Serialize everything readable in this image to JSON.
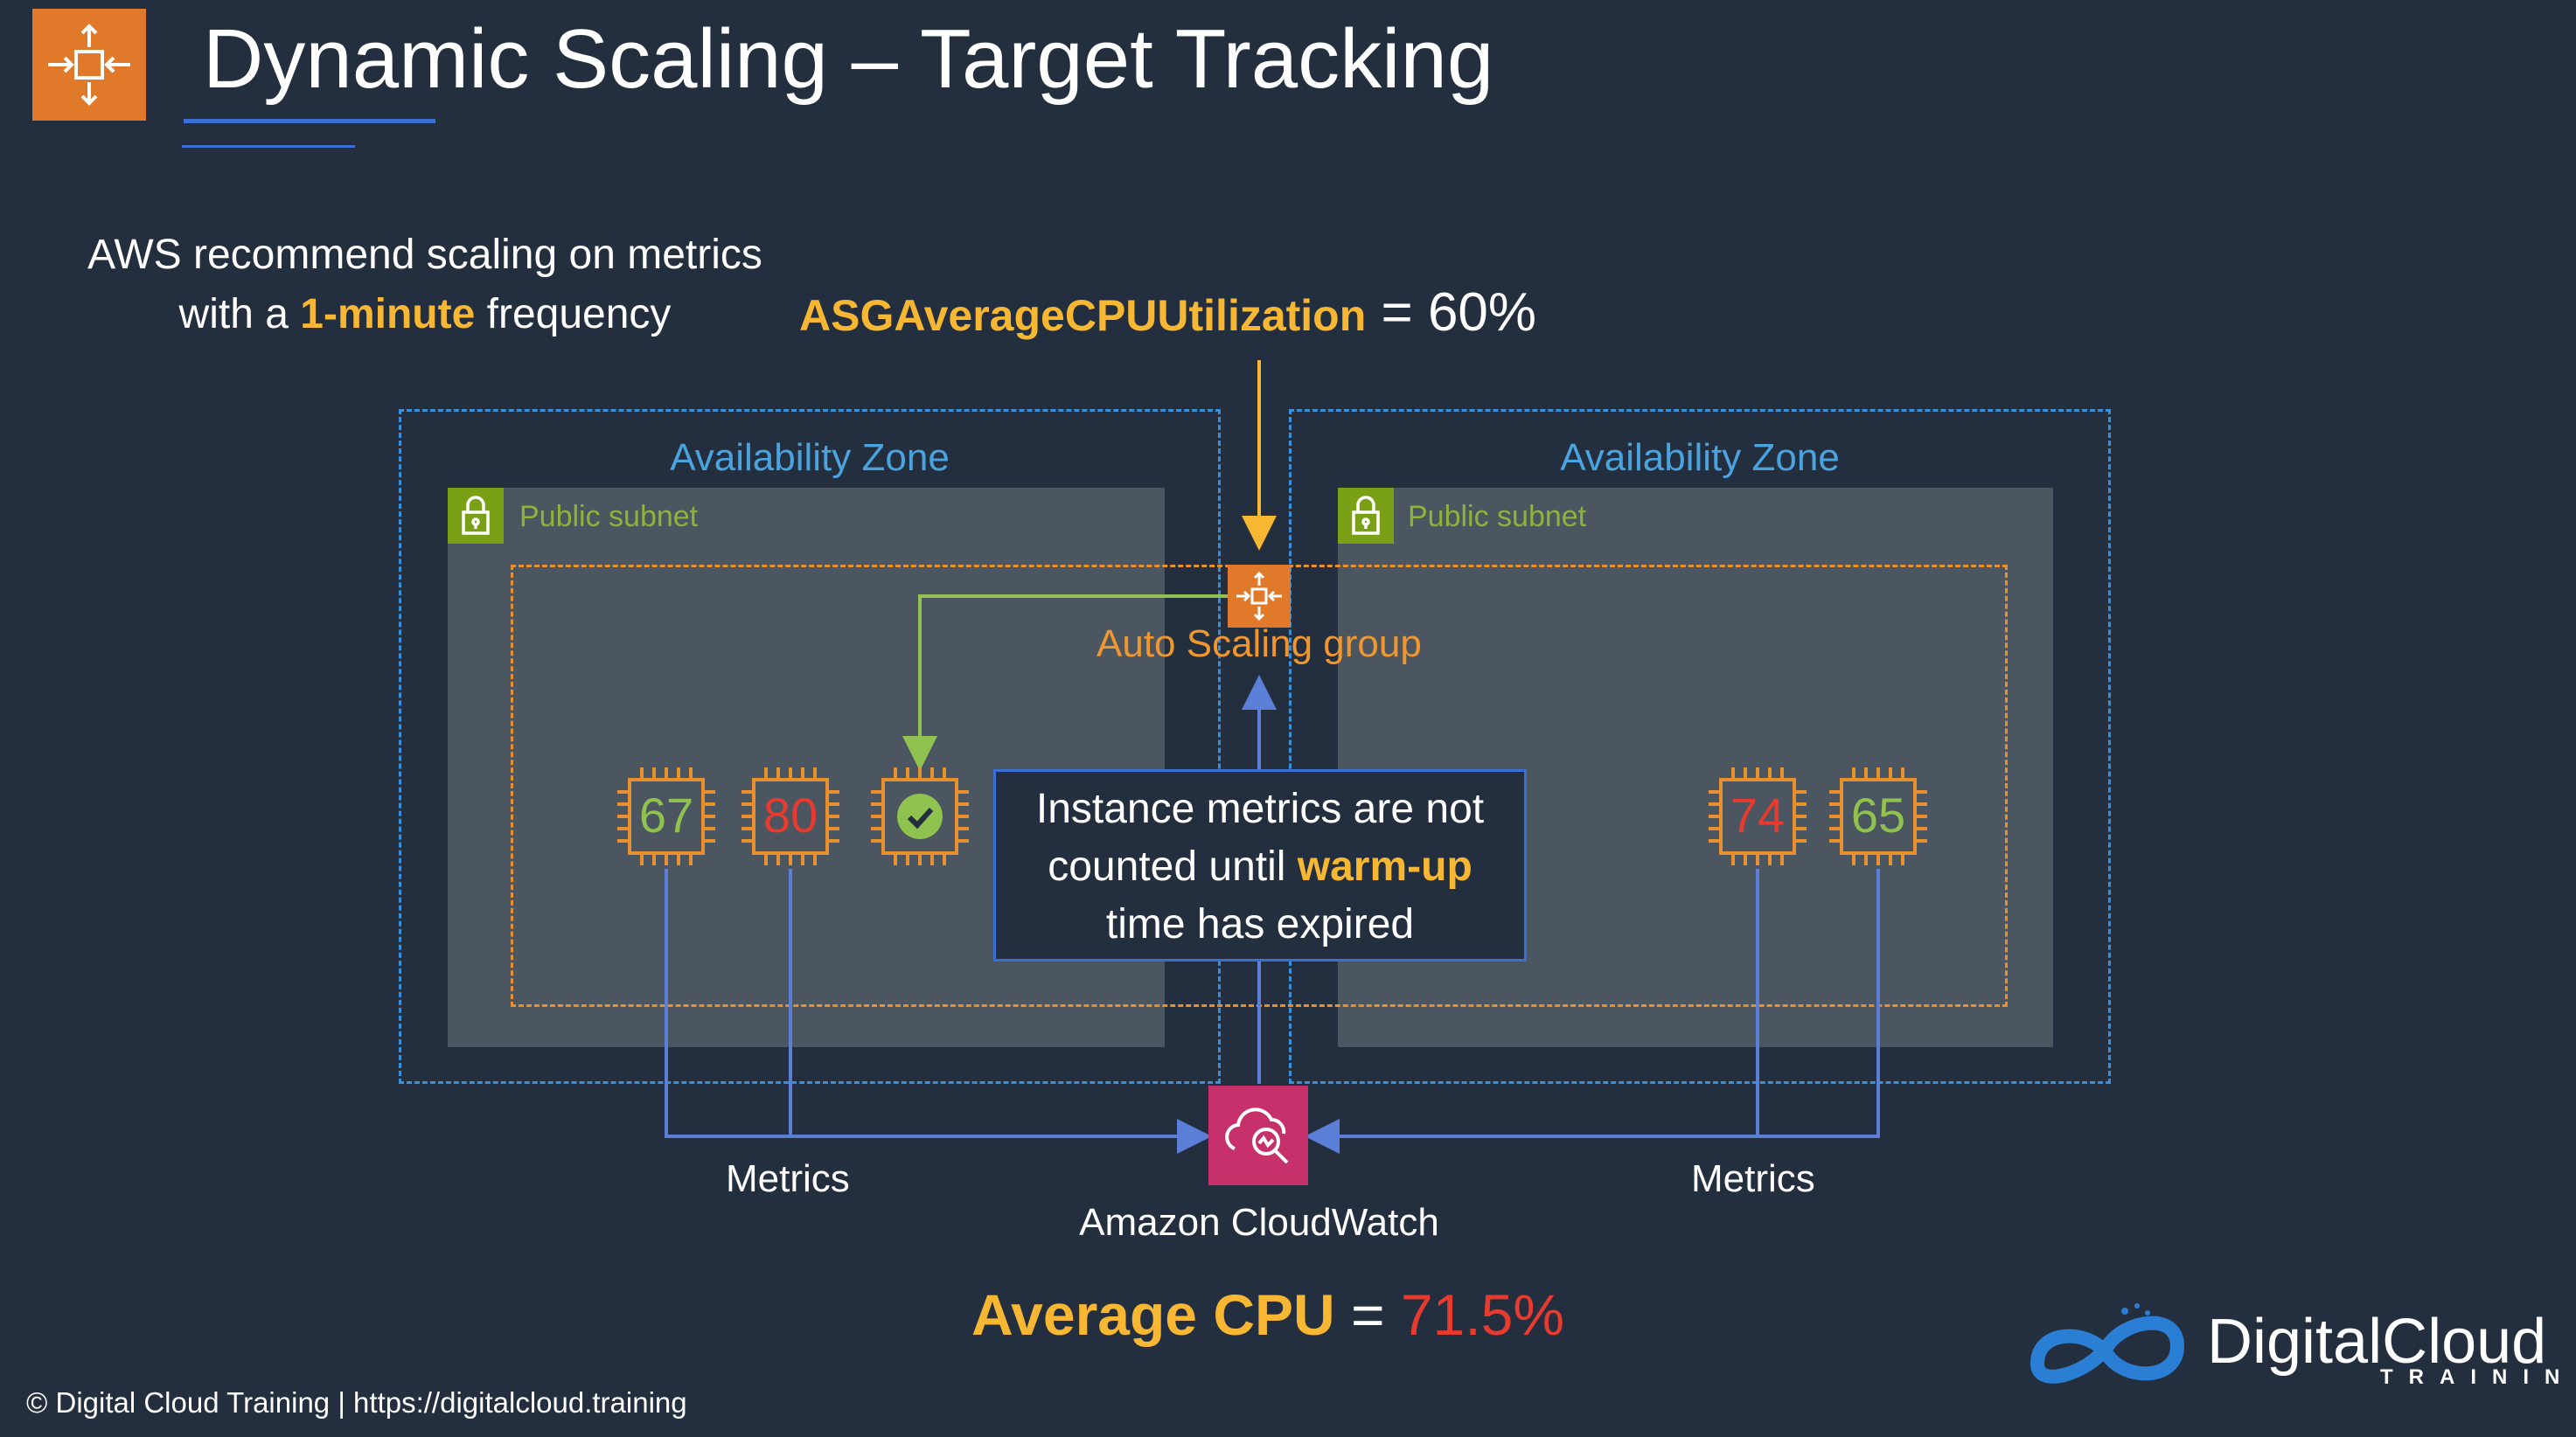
{
  "title": "Dynamic Scaling – Target Tracking",
  "intro": {
    "line1": "AWS recommend scaling on metrics",
    "line2_pre": "with a ",
    "line2_highlight": "1-minute",
    "line2_post": " frequency"
  },
  "target_metric": {
    "name": "ASGAverageCPUUtilization",
    "operator": " = ",
    "value": "60%"
  },
  "availability_zones": [
    {
      "label": "Availability Zone",
      "subnet_label": "Public subnet"
    },
    {
      "label": "Availability Zone",
      "subnet_label": "Public subnet"
    }
  ],
  "auto_scaling_group": {
    "label": "Auto Scaling group"
  },
  "instances": {
    "left": [
      {
        "cpu": "67",
        "color": "#8fc24f"
      },
      {
        "cpu": "80",
        "color": "#e63b2e"
      },
      {
        "status": "check-icon"
      }
    ],
    "right": [
      {
        "cpu": "74",
        "color": "#e63b2e"
      },
      {
        "cpu": "65",
        "color": "#8fc24f"
      }
    ]
  },
  "callout": {
    "line1": "Instance metrics are not",
    "line2_pre": "counted until ",
    "line2_highlight": "warm-up",
    "line3": "time has expired"
  },
  "cloudwatch": {
    "label": "Amazon CloudWatch"
  },
  "metrics_labels": {
    "left": "Metrics",
    "right": "Metrics"
  },
  "average": {
    "label": "Average CPU",
    "operator": " = ",
    "value": "71.5%"
  },
  "footer": "© Digital Cloud Training  | https://digitalcloud.training",
  "logo": {
    "name": "DigitalCloud",
    "sub": "TRAINING"
  },
  "colors": {
    "background": "#232f3e",
    "accent_orange": "#e07a2a",
    "highlight_yellow": "#f7b733",
    "az_blue": "#4aa3df",
    "subnet_green": "#7aa116",
    "cloudwatch_pink": "#c7316b",
    "alert_red": "#e63b2e",
    "ok_green": "#8fc24f"
  }
}
